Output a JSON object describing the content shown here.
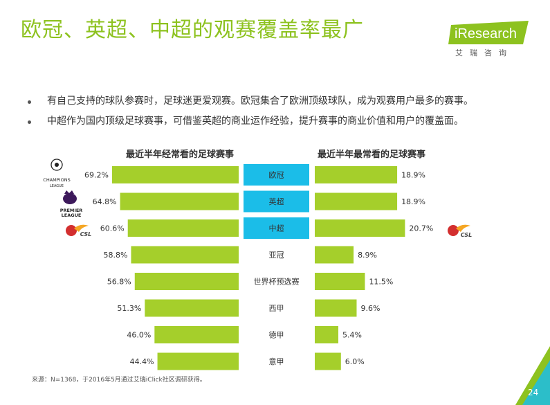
{
  "header": {
    "title": "欧冠、英超、中超的观赛覆盖率最广",
    "logo_main": "iResearch",
    "logo_sub": "艾瑞咨询"
  },
  "bullets": [
    "有自己支持的球队参赛时，足球迷更爱观赛。欧冠集合了欧洲顶级球队，成为观赛用户最多的赛事。",
    "中超作为国内顶级足球赛事，可借鉴英超的商业运作经验，提升赛事的商业价值和用户的覆盖面。"
  ],
  "colors": {
    "accent": "#8dc21f",
    "bar": "#a5cf2b",
    "highlight": "#1bbde8",
    "text": "#333333"
  },
  "chart_data": {
    "type": "bar",
    "categories": [
      "欧冠",
      "英超",
      "中超",
      "亚冠",
      "世界杯预选赛",
      "西甲",
      "德甲",
      "意甲"
    ],
    "highlighted": [
      "欧冠",
      "英超",
      "中超"
    ],
    "series": [
      {
        "name": "最近半年经常看的足球赛事",
        "values": [
          69.2,
          64.8,
          60.6,
          58.8,
          56.8,
          51.3,
          46.0,
          44.4
        ],
        "labels": [
          "69.2%",
          "64.8%",
          "60.6%",
          "58.8%",
          "56.8%",
          "51.3%",
          "46.0%",
          "44.4%"
        ]
      },
      {
        "name": "最近半年最常看的足球赛事",
        "values": [
          18.9,
          18.9,
          20.7,
          8.9,
          11.5,
          9.6,
          5.4,
          6.0
        ],
        "labels": [
          "18.9%",
          "18.9%",
          "20.7%",
          "8.9%",
          "11.5%",
          "9.6%",
          "5.4%",
          "6.0%"
        ]
      }
    ],
    "unit": "%",
    "legend": "none",
    "grid": false
  },
  "league_logos": {
    "ucl_line1": "CHAMPIONS",
    "ucl_line2": "LEAGUE",
    "epl_line1": "PREMIER",
    "epl_line2": "LEAGUE",
    "csl": "CSL"
  },
  "footer": {
    "source": "来源：N=1368，于2016年5月通过艾瑞iClick社区调研获得。",
    "page": "24"
  }
}
